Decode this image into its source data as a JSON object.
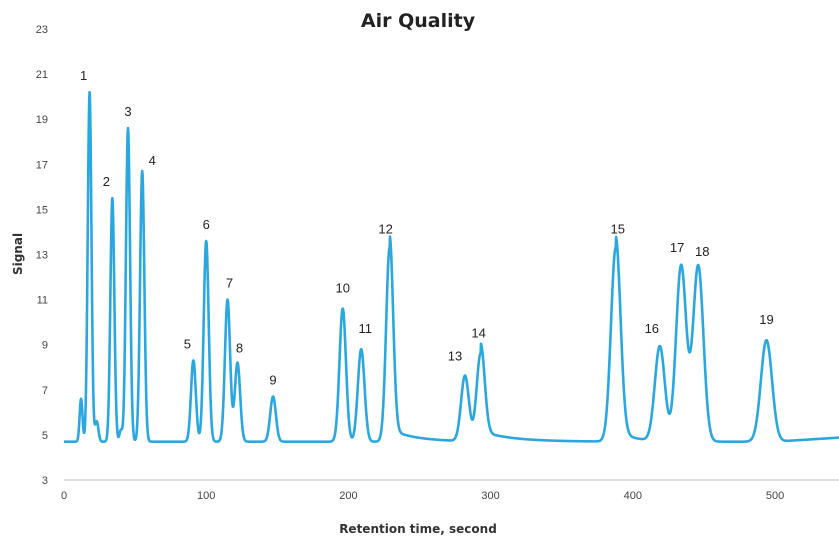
{
  "chart_data": {
    "type": "line",
    "title": "Air Quality",
    "xlabel": "Retention time, second",
    "ylabel": "Signal",
    "xlim": [
      0,
      545
    ],
    "ylim": [
      3,
      23
    ],
    "xticks": [
      0,
      100,
      200,
      300,
      400,
      500
    ],
    "yticks": [
      3,
      5,
      7,
      9,
      11,
      13,
      15,
      17,
      19,
      21,
      23
    ],
    "grid": false,
    "color": "#2BA7DF",
    "baseline": 4.7,
    "peaks": [
      {
        "label": "1",
        "x": 18,
        "y": 20.2
      },
      {
        "label": "2",
        "x": 34,
        "y": 15.5
      },
      {
        "label": "3",
        "x": 45,
        "y": 18.6
      },
      {
        "label": "4",
        "x": 55,
        "y": 16.7
      },
      {
        "label": "5",
        "x": 91,
        "y": 8.3
      },
      {
        "label": "6",
        "x": 100,
        "y": 13.6
      },
      {
        "label": "7",
        "x": 115,
        "y": 11.0
      },
      {
        "label": "8",
        "x": 122,
        "y": 8.2
      },
      {
        "label": "9",
        "x": 147,
        "y": 6.7
      },
      {
        "label": "10",
        "x": 196,
        "y": 10.6
      },
      {
        "label": "11",
        "x": 209,
        "y": 8.8
      },
      {
        "label": "12",
        "x": 229,
        "y": 13.3
      },
      {
        "label": "13",
        "x": 282,
        "y": 7.6
      },
      {
        "label": "14",
        "x": 293,
        "y": 8.6
      },
      {
        "label": "15",
        "x": 388,
        "y": 13.3
      },
      {
        "label": "16",
        "x": 419,
        "y": 8.9
      },
      {
        "label": "17",
        "x": 434,
        "y": 12.5
      },
      {
        "label": "18",
        "x": 446,
        "y": 12.5
      },
      {
        "label": "19",
        "x": 494,
        "y": 9.2
      }
    ]
  }
}
